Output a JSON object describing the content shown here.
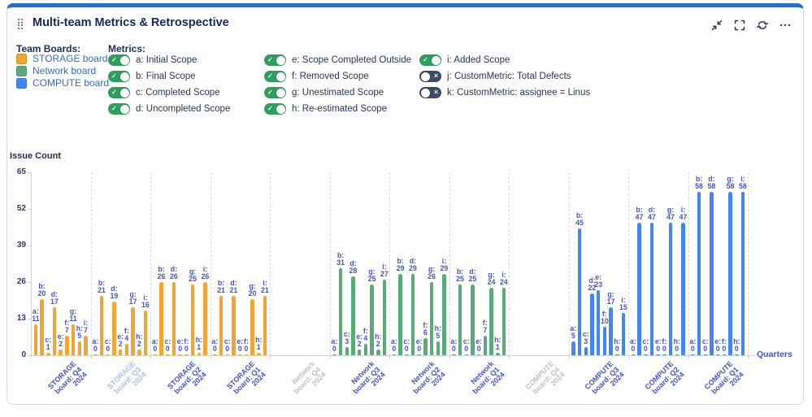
{
  "header": {
    "title": "Multi-team Metrics & Retrospective",
    "icons": [
      "collapse-icon",
      "fullscreen-icon",
      "refresh-icon",
      "more-options-icon"
    ]
  },
  "icons": {
    "toggle_on_glyph": "✓",
    "toggle_off_glyph": "✕",
    "drag_handle": "dot-grid"
  },
  "colors": {
    "accent_top_border": "#2A6BC8",
    "value_label": "#4353CF",
    "toggle_on": "#2E9E5E",
    "toggle_off": "#3E4A63"
  },
  "legend": {
    "team_boards_label": "Team Boards:",
    "boards": [
      {
        "id": "STORAGE",
        "label": "STORAGE board",
        "color": "#F2A536"
      },
      {
        "id": "Network",
        "label": "Network board",
        "color": "#5BAA7A"
      },
      {
        "id": "COMPUTE",
        "label": "COMPUTE board",
        "color": "#4285F4"
      }
    ],
    "metrics_label": "Metrics:",
    "metrics": [
      {
        "id": "a",
        "label": "a: Initial Scope",
        "on": true,
        "column": 1
      },
      {
        "id": "b",
        "label": "b: Final Scope",
        "on": true,
        "column": 1
      },
      {
        "id": "c",
        "label": "c: Completed Scope",
        "on": true,
        "column": 1
      },
      {
        "id": "d",
        "label": "d: Uncompleted Scope",
        "on": true,
        "column": 1
      },
      {
        "id": "e",
        "label": "e: Scope Completed Outside",
        "on": true,
        "column": 2
      },
      {
        "id": "f",
        "label": "f: Removed Scope",
        "on": true,
        "column": 2
      },
      {
        "id": "g",
        "label": "g: Unestimated Scope",
        "on": true,
        "column": 2
      },
      {
        "id": "h",
        "label": "h: Re-estimated Scope",
        "on": true,
        "column": 2
      },
      {
        "id": "i",
        "label": "i: Added Scope",
        "on": true,
        "column": 3
      },
      {
        "id": "j",
        "label": "j: CustomMetric: Total Defects",
        "on": false,
        "column": 3
      },
      {
        "id": "k",
        "label": "k: CustomMetric: assignee = Linus",
        "on": false,
        "column": 3
      }
    ]
  },
  "chart_data": {
    "type": "bar",
    "title": "",
    "ylabel": "Issue Count",
    "xlabel": "Quarters",
    "ylim": [
      0,
      65
    ],
    "yticks": [
      0,
      13,
      26,
      39,
      52,
      65
    ],
    "grid": "dashed-vertical-separators",
    "metric_keys": [
      "a",
      "b",
      "c",
      "d",
      "e",
      "f",
      "g",
      "h",
      "i"
    ],
    "label_colors": {
      "normal": "#4353CF",
      "muted": "#A9C2F0",
      "no_data": "#BDC3CC"
    },
    "categories": [
      {
        "board": "STORAGE",
        "label": "STORAGE board: Q4 2024",
        "lines": [
          "STORAGE",
          "board: Q4",
          "2024"
        ],
        "label_style": "normal",
        "values": {
          "a": 11,
          "b": 20,
          "c": 1,
          "d": 17,
          "e": 2,
          "f": 7,
          "g": 11,
          "h": 5,
          "i": 7
        }
      },
      {
        "board": "STORAGE",
        "label": "STORAGE board: Q3 2024",
        "lines": [
          "STORAGE",
          "board: Q3",
          "2024"
        ],
        "label_style": "muted",
        "values": {
          "a": 0,
          "b": 21,
          "c": 0,
          "d": 19,
          "e": 2,
          "f": 4,
          "g": 17,
          "h": 2,
          "i": 16
        }
      },
      {
        "board": "STORAGE",
        "label": "STORAGE board: Q2 2024",
        "lines": [
          "STORAGE",
          "board: Q2",
          "2024"
        ],
        "label_style": "normal",
        "values": {
          "a": 0,
          "b": 26,
          "c": 0,
          "d": 26,
          "e": 0,
          "f": 0,
          "g": 25,
          "h": 1,
          "i": 26
        }
      },
      {
        "board": "STORAGE",
        "label": "STORAGE board: Q1 2024",
        "lines": [
          "STORAGE",
          "board: Q1",
          "2024"
        ],
        "label_style": "normal",
        "values": {
          "a": 0,
          "b": 21,
          "c": 0,
          "d": 21,
          "e": 0,
          "f": 0,
          "g": 20,
          "h": 1,
          "i": 21
        }
      },
      {
        "board": "Network",
        "label": "Network board: Q4 2024",
        "lines": [
          "Network",
          "board: Q4",
          "2024"
        ],
        "label_style": "no_data",
        "values": null
      },
      {
        "board": "Network",
        "label": "Network board: Q3 2024",
        "lines": [
          "Network",
          "board: Q3",
          "2024"
        ],
        "label_style": "normal",
        "values": {
          "a": 0,
          "b": 31,
          "c": 3,
          "d": 28,
          "e": 2,
          "f": 4,
          "g": 25,
          "h": 2,
          "i": 27
        }
      },
      {
        "board": "Network",
        "label": "Network board: Q2 2024",
        "lines": [
          "Network",
          "board: Q2",
          "2024"
        ],
        "label_style": "normal",
        "values": {
          "a": 0,
          "b": 29,
          "c": 0,
          "d": 29,
          "e": 0,
          "f": 6,
          "g": 26,
          "h": 5,
          "i": 29
        }
      },
      {
        "board": "Network",
        "label": "Network board: Q1 2024",
        "lines": [
          "Network",
          "board: Q1",
          "2024"
        ],
        "label_style": "normal",
        "values": {
          "a": 0,
          "b": 25,
          "c": 0,
          "d": 25,
          "e": 0,
          "f": 7,
          "g": 24,
          "h": 1,
          "i": 24
        }
      },
      {
        "board": "COMPUTE",
        "label": "COMPUTE board: Q4 2024",
        "lines": [
          "COMPUTE",
          "board: Q4",
          "2024"
        ],
        "label_style": "no_data",
        "values": null
      },
      {
        "board": "COMPUTE",
        "label": "COMPUTE board: Q3 2024",
        "lines": [
          "COMPUTE",
          "board: Q3",
          "2024"
        ],
        "label_style": "normal",
        "values": {
          "a": 5,
          "b": 45,
          "c": 3,
          "d": 22,
          "e": 23,
          "f": 10,
          "g": 17,
          "h": 0,
          "i": 15
        }
      },
      {
        "board": "COMPUTE",
        "label": "COMPUTE board: Q2 2024",
        "lines": [
          "COMPUTE",
          "board: Q2",
          "2024"
        ],
        "label_style": "normal",
        "values": {
          "a": 0,
          "b": 47,
          "c": 0,
          "d": 47,
          "e": 0,
          "f": 0,
          "g": 47,
          "h": 0,
          "i": 47
        }
      },
      {
        "board": "COMPUTE",
        "label": "COMPUTE board: Q1 2024",
        "lines": [
          "COMPUTE",
          "board: Q1",
          "2024"
        ],
        "label_style": "normal",
        "values": {
          "a": 0,
          "b": 58,
          "c": 0,
          "d": 58,
          "e": 0,
          "f": 0,
          "g": 58,
          "h": 0,
          "i": 58
        }
      }
    ]
  }
}
